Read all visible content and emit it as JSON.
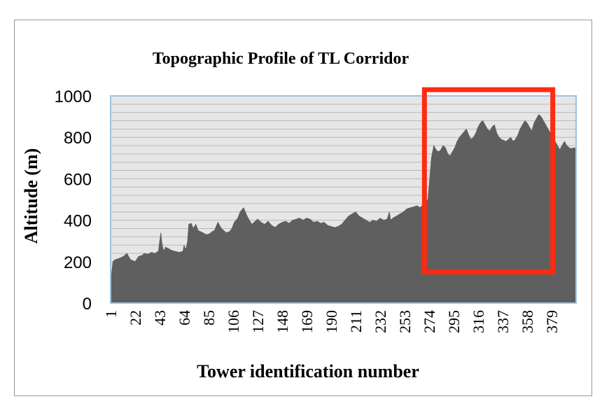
{
  "chart_data": {
    "type": "area",
    "title": "Topographic Profile of TL Corridor",
    "xlabel": "Tower identification number",
    "ylabel": "Altitude (m)",
    "ylim": [
      0,
      1000
    ],
    "yticks": [
      0,
      200,
      400,
      600,
      800,
      1000
    ],
    "xlim": [
      1,
      400
    ],
    "xticks": [
      1,
      22,
      43,
      64,
      85,
      106,
      127,
      148,
      169,
      190,
      211,
      232,
      253,
      274,
      295,
      316,
      337,
      358,
      379
    ],
    "grid": true,
    "legend": "none",
    "colors": {
      "fill": "#5f5f5f",
      "plot_background": "#e6e6e6",
      "grid": "#b8b8b8",
      "plot_border": "#9cc3e0",
      "highlight": "#ff2a12"
    },
    "highlight_box": {
      "x": [
        270,
        380
      ],
      "y": [
        150,
        1030
      ]
    },
    "series": [
      {
        "x": [
          1,
          2,
          3,
          5,
          8,
          12,
          15,
          18,
          20,
          22,
          25,
          28,
          30,
          33,
          36,
          39,
          42,
          44,
          45,
          46,
          47,
          48,
          50,
          53,
          56,
          60,
          63,
          64,
          65,
          66,
          67,
          68,
          70,
          72,
          74,
          76,
          78,
          80,
          83,
          86,
          88,
          90,
          93,
          96,
          100,
          103,
          105,
          107,
          110,
          112,
          115,
          118,
          120,
          122,
          125,
          127,
          130,
          133,
          136,
          139,
          142,
          145,
          148,
          151,
          154,
          157,
          160,
          163,
          166,
          169,
          172,
          175,
          178,
          181,
          184,
          187,
          190,
          193,
          196,
          199,
          202,
          205,
          208,
          211,
          214,
          217,
          220,
          223,
          226,
          229,
          232,
          235,
          238,
          240,
          241,
          243,
          246,
          249,
          252,
          255,
          258,
          261,
          264,
          266,
          268,
          270,
          273,
          276,
          278,
          280,
          282,
          284,
          286,
          288,
          290,
          292,
          294,
          296,
          298,
          300,
          303,
          306,
          308,
          310,
          312,
          314,
          316,
          318,
          320,
          322,
          324,
          326,
          328,
          330,
          332,
          334,
          336,
          338,
          340,
          342,
          344,
          346,
          348,
          350,
          352,
          354,
          356,
          358,
          360,
          362,
          364,
          366,
          368,
          370,
          372,
          374,
          376,
          378,
          380,
          382,
          384,
          386,
          388,
          390,
          392,
          394,
          396,
          398,
          400
        ],
        "values": [
          80,
          150,
          200,
          210,
          215,
          225,
          240,
          210,
          205,
          200,
          225,
          230,
          240,
          235,
          245,
          240,
          250,
          340,
          290,
          260,
          255,
          270,
          265,
          255,
          250,
          245,
          250,
          280,
          260,
          270,
          300,
          380,
          385,
          360,
          380,
          350,
          345,
          340,
          330,
          335,
          345,
          350,
          390,
          360,
          340,
          345,
          360,
          390,
          410,
          440,
          460,
          420,
          400,
          380,
          395,
          405,
          390,
          380,
          395,
          375,
          365,
          380,
          390,
          395,
          385,
          400,
          405,
          410,
          400,
          410,
          405,
          390,
          395,
          385,
          390,
          375,
          370,
          365,
          370,
          380,
          400,
          420,
          430,
          440,
          420,
          410,
          400,
          390,
          400,
          395,
          410,
          400,
          405,
          440,
          400,
          410,
          420,
          430,
          440,
          455,
          460,
          465,
          470,
          460,
          470,
          480,
          500,
          700,
          760,
          740,
          730,
          740,
          760,
          750,
          720,
          710,
          730,
          750,
          780,
          800,
          820,
          840,
          810,
          790,
          800,
          820,
          850,
          870,
          880,
          860,
          840,
          830,
          850,
          860,
          820,
          800,
          790,
          785,
          780,
          790,
          800,
          780,
          790,
          810,
          840,
          860,
          880,
          870,
          850,
          830,
          870,
          890,
          910,
          900,
          880,
          860,
          840,
          820,
          800,
          780,
          760,
          740,
          760,
          780,
          760,
          750,
          745,
          750,
          745
        ]
      }
    ]
  }
}
